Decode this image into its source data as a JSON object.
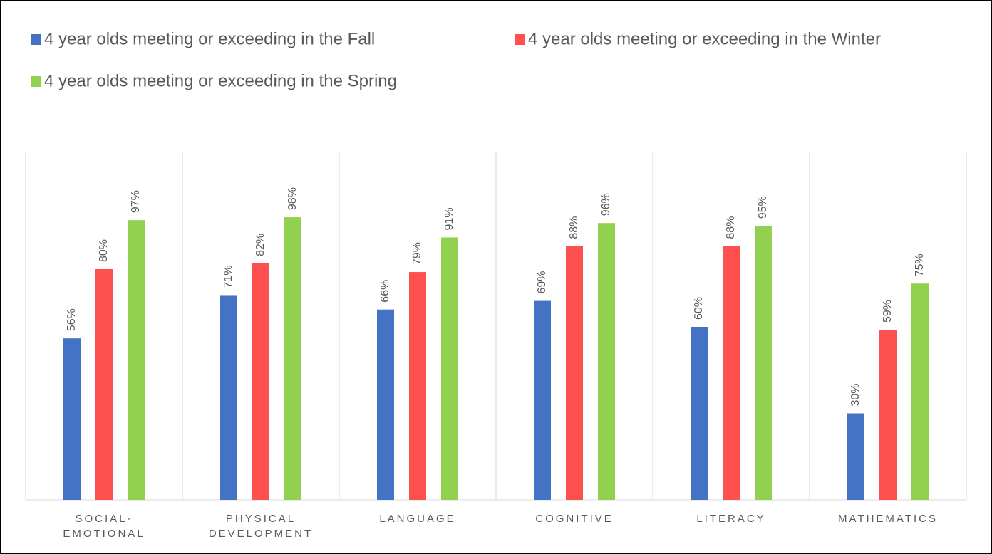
{
  "chart_data": {
    "type": "bar",
    "categories": [
      "SOCIAL-EMOTIONAL",
      "PHYSICAL DEVELOPMENT",
      "LANGUAGE",
      "COGNITIVE",
      "LITERACY",
      "MATHEMATICS"
    ],
    "series": [
      {
        "name": "4 year olds meeting or exceeding in the Fall",
        "color": "#4472c4",
        "values": [
          56,
          71,
          66,
          69,
          60,
          30
        ],
        "value_labels": [
          "56%",
          "71%",
          "66%",
          "69%",
          "60%",
          "30%"
        ]
      },
      {
        "name": "4 year olds meeting or exceeding in the Winter",
        "color": "#ff5050",
        "values": [
          80,
          82,
          79,
          88,
          88,
          59
        ],
        "value_labels": [
          "80%",
          "82%",
          "79%",
          "88%",
          "88%",
          "59%"
        ]
      },
      {
        "name": "4 year olds meeting or exceeding in the Spring",
        "color": "#92d050",
        "values": [
          97,
          98,
          91,
          96,
          95,
          75
        ],
        "value_labels": [
          "97%",
          "98%",
          "91%",
          "96%",
          "95%",
          "75%"
        ]
      }
    ],
    "ylim": [
      0,
      120
    ],
    "legend": "top"
  }
}
